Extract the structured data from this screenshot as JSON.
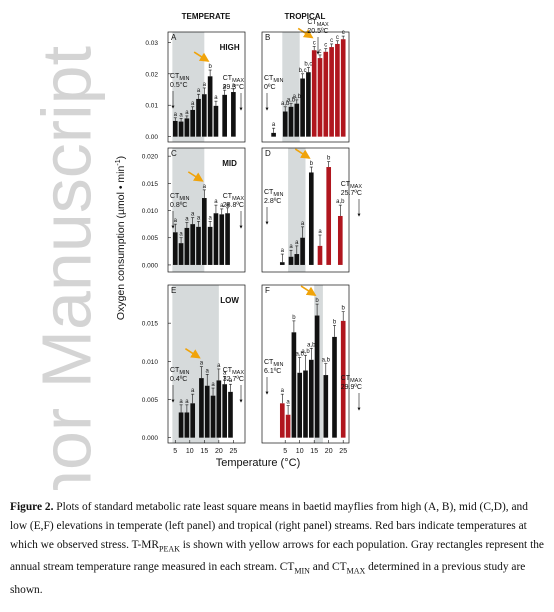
{
  "watermark": "Author Manuscript",
  "column_titles": [
    "TEMPERATE",
    "TROPICAL"
  ],
  "y_label": {
    "text": "Oxygen consumption (µmol • min",
    "sup": "-1",
    "end": ")"
  },
  "x_label": "Temperature (°C)",
  "chart_data": [
    {
      "type": "bar",
      "letter": "A",
      "title": "HIGH",
      "xlim": [
        2.5,
        29
      ],
      "ylim": [
        -0.0017,
        0.0333
      ],
      "yticks": [
        {
          "value": 0,
          "label": "0.00"
        },
        0.01,
        0.02,
        0.03
      ],
      "range": [
        4,
        15
      ],
      "peak_x": 17,
      "x": [
        5,
        7,
        9,
        11,
        13,
        15,
        17,
        19,
        22,
        25
      ],
      "values": [
        0.005,
        0.0048,
        0.0058,
        0.0085,
        0.012,
        0.0135,
        0.0192,
        0.0098,
        0.0133,
        0.0142
      ],
      "errors": [
        0.001,
        0.001,
        0.0008,
        0.001,
        0.0015,
        0.002,
        0.002,
        0.0015,
        0.0015,
        0.001
      ],
      "colors": [
        "#111",
        "#111",
        "#111",
        "#111",
        "#111",
        "#111",
        "#111",
        "#111",
        "#111",
        "#111"
      ],
      "letters": [
        "a",
        "a",
        "a",
        "a",
        "a",
        "a",
        "b",
        "a",
        "a",
        "a"
      ],
      "ct_min": {
        "label": "CT",
        "sub": "MIN",
        "value": "0.5°C"
      },
      "ct_max": {
        "label": "CT",
        "sub": "MAX",
        "value": "29.3°C"
      }
    },
    {
      "type": "bar",
      "letter": "B",
      "xlim": [
        -3,
        27
      ],
      "ylim": [
        -0.0017,
        0.0333
      ],
      "range": [
        4,
        10
      ],
      "peak_x": 15,
      "x": [
        1,
        5,
        7,
        9,
        11,
        13,
        15,
        17,
        19,
        21,
        23,
        25
      ],
      "values": [
        0.0012,
        0.008,
        0.0095,
        0.0105,
        0.0185,
        0.0205,
        0.0275,
        0.025,
        0.027,
        0.0285,
        0.0295,
        0.031
      ],
      "errors": [
        0.0015,
        0.0015,
        0.001,
        0.0012,
        0.0015,
        0.0015,
        0.0012,
        0.001,
        0.001,
        0.001,
        0.001,
        0.001
      ],
      "colors": [
        "#111",
        "#111",
        "#111",
        "#111",
        "#111",
        "#111",
        "#b0161e",
        "#b0161e",
        "#b0161e",
        "#b0161e",
        "#b0161e",
        "#b0161e"
      ],
      "letters": [
        "a",
        "a,b",
        "a,b",
        "a,b",
        "b,c",
        "b,c",
        "c",
        "c",
        "c",
        "c",
        "c",
        "c"
      ],
      "ct_min": {
        "label": "CT",
        "sub": "MIN",
        "value": "0ºC"
      },
      "ct_max": {
        "label": "CT",
        "sub": "MAX",
        "value": "20.5ºC"
      }
    },
    {
      "type": "bar",
      "letter": "C",
      "title": "MID",
      "xlim": [
        2.5,
        29
      ],
      "ylim": [
        -0.0013,
        0.0215
      ],
      "yticks": [
        {
          "value": 0,
          "label": "0.000"
        },
        0.005,
        {
          "value": 0.01,
          "label": "0.010"
        },
        0.015,
        {
          "value": 0.02,
          "label": "0.020"
        }
      ],
      "range": [
        4,
        15
      ],
      "peak_x": 15,
      "x": [
        5,
        7,
        9,
        11,
        13,
        15,
        17,
        19,
        21,
        23
      ],
      "values": [
        0.006,
        0.004,
        0.0068,
        0.0075,
        0.007,
        0.0123,
        0.007,
        0.0095,
        0.0093,
        0.0095
      ],
      "errors": [
        0.0015,
        0.001,
        0.001,
        0.0012,
        0.001,
        0.0015,
        0.001,
        0.0015,
        0.001,
        0.001
      ],
      "colors": [
        "#111",
        "#111",
        "#111",
        "#111",
        "#111",
        "#111",
        "#111",
        "#111",
        "#111",
        "#111"
      ],
      "letters": [
        "a",
        "a",
        "a",
        "a",
        "a",
        "a",
        "a",
        "a",
        "a",
        "a"
      ],
      "ct_min": {
        "label": "CT",
        "sub": "MIN",
        "value": "0.8ºC"
      },
      "ct_max": {
        "label": "CT",
        "sub": "MAX",
        "value": "28.8ºC"
      }
    },
    {
      "type": "bar",
      "letter": "D",
      "xlim": [
        -3,
        27
      ],
      "ylim": [
        -0.0013,
        0.0215
      ],
      "range": [
        6,
        12
      ],
      "peak_x": 14,
      "x": [
        4,
        7,
        9,
        11,
        14,
        17,
        20,
        24
      ],
      "values": [
        0.0005,
        0.0015,
        0.002,
        0.005,
        0.017,
        0.0035,
        0.018,
        0.009
      ],
      "errors": [
        0.0015,
        0.0012,
        0.0015,
        0.002,
        0.001,
        0.002,
        0.001,
        0.002
      ],
      "colors": [
        "#111",
        "#111",
        "#111",
        "#111",
        "#111",
        "#b0161e",
        "#b0161e",
        "#b0161e"
      ],
      "letters": [
        "a",
        "a",
        "a",
        "a",
        "b",
        "a",
        "b",
        "a,b"
      ],
      "ct_min": {
        "label": "CT",
        "sub": "MIN",
        "value": "2.8ºC"
      },
      "ct_max": {
        "label": "CT",
        "sub": "MAX",
        "value": "25.7ºC"
      }
    },
    {
      "type": "bar",
      "letter": "E",
      "title": "LOW",
      "xlim": [
        2.5,
        29
      ],
      "ylim": [
        -0.0007,
        0.02
      ],
      "yticks": [
        {
          "value": 0,
          "label": "0.000"
        },
        0.005,
        {
          "value": 0.01,
          "label": "0.010"
        },
        0.015
      ],
      "xticks": [
        5,
        10,
        15,
        20,
        25
      ],
      "range": [
        4,
        20
      ],
      "peak_x": 14,
      "x": [
        7,
        9,
        11,
        14,
        16,
        18,
        20,
        22,
        24
      ],
      "values": [
        0.0033,
        0.0033,
        0.0045,
        0.0078,
        0.0068,
        0.0055,
        0.0075,
        0.007,
        0.006
      ],
      "errors": [
        0.001,
        0.001,
        0.0012,
        0.0015,
        0.0015,
        0.001,
        0.0015,
        0.001,
        0.001
      ],
      "colors": [
        "#111",
        "#111",
        "#111",
        "#111",
        "#111",
        "#111",
        "#111",
        "#111",
        "#111"
      ],
      "letters": [
        "a",
        "a",
        "a",
        "a",
        "a",
        "a",
        "a",
        "a",
        "a"
      ],
      "ct_min": {
        "label": "CT",
        "sub": "MIN",
        "value": "0.4ºC"
      },
      "ct_max": {
        "label": "CT",
        "sub": "MAX",
        "value": "32.7ºC"
      }
    },
    {
      "type": "bar",
      "letter": "F",
      "xlim": [
        -3,
        27
      ],
      "ylim": [
        -0.0007,
        0.02
      ],
      "xticks": [
        5,
        10,
        15,
        20,
        25
      ],
      "range": [
        15,
        18
      ],
      "peak_x": 16,
      "x": [
        4,
        6,
        8,
        10,
        12,
        14,
        16,
        19,
        22,
        25
      ],
      "values": [
        0.0045,
        0.003,
        0.0138,
        0.0085,
        0.0088,
        0.0102,
        0.016,
        0.0082,
        0.0132,
        0.0153
      ],
      "errors": [
        0.0012,
        0.0012,
        0.0015,
        0.002,
        0.002,
        0.0015,
        0.0015,
        0.0015,
        0.0015,
        0.0012
      ],
      "colors": [
        "#b0161e",
        "#b0161e",
        "#111",
        "#111",
        "#111",
        "#111",
        "#111",
        "#111",
        "#111",
        "#b0161e"
      ],
      "letters": [
        "a",
        "a",
        "b",
        "a,b",
        "a,b",
        "a,b",
        "b",
        "a,b",
        "b",
        "b"
      ],
      "ct_min": {
        "label": "CT",
        "sub": "MIN",
        "value": "6.1ºC"
      },
      "ct_max": {
        "label": "CT",
        "sub": "MAX",
        "value": "29.9ºC"
      }
    }
  ],
  "caption": [
    {
      "text": "Figure 2.",
      "style": "bold"
    },
    {
      "text": " Plots of standard metabolic rate least square means in baetid mayflies from high (A, B), mid (C,D), and low (E,F) elevations in temperate (left panel) and tropical (right panel) streams. Red bars indicate temperatures at which we observed stress. T-MR",
      "style": "plain"
    },
    {
      "text": "PEAK",
      "style": "sub"
    },
    {
      "text": " is shown with yellow arrows for each population. Gray rectangles represent the annual stream temperature range measured in each stream. CT",
      "style": "plain"
    },
    {
      "text": "MIN",
      "style": "sub"
    },
    {
      "text": " and CT",
      "style": "plain"
    },
    {
      "text": "MAX",
      "style": "sub"
    },
    {
      "text": " determined in a previous study are shown.",
      "style": "plain"
    }
  ]
}
